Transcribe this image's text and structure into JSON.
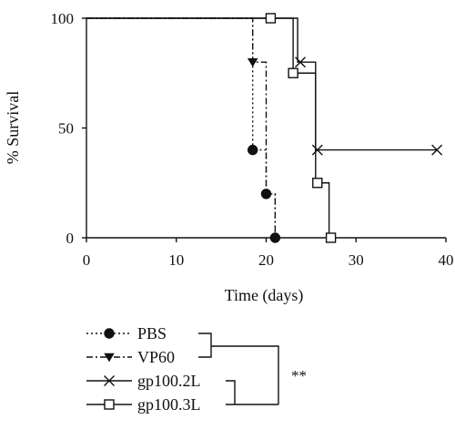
{
  "chart_data": {
    "type": "line",
    "subtype": "kaplan-meier-survival",
    "title": "",
    "xlabel": "Time (days)",
    "ylabel": "% Survival",
    "xlim": [
      0,
      40
    ],
    "ylim": [
      0,
      100
    ],
    "xticks": [
      0,
      10,
      20,
      30,
      40
    ],
    "yticks": [
      0,
      50,
      100
    ],
    "grid": false,
    "legend_position": "bottom",
    "significance_label": "**",
    "significance_groups": [
      [
        "PBS",
        "VP60"
      ],
      [
        "gp100.2L",
        "gp100.3L"
      ]
    ],
    "series": [
      {
        "name": "PBS",
        "line_style": "dotted",
        "marker": "circle-filled",
        "steps": [
          [
            0,
            100
          ],
          [
            18.5,
            40
          ],
          [
            20,
            20
          ],
          [
            21,
            0
          ]
        ],
        "markers": [
          [
            18.5,
            40
          ],
          [
            20,
            20
          ],
          [
            21,
            0
          ]
        ]
      },
      {
        "name": "VP60",
        "line_style": "dash-dot",
        "marker": "triangle-down-filled",
        "steps": [
          [
            0,
            100
          ],
          [
            18.5,
            80
          ],
          [
            20,
            20
          ],
          [
            21,
            0
          ]
        ],
        "markers": [
          [
            18.5,
            80
          ]
        ]
      },
      {
        "name": "gp100.2L",
        "line_style": "solid",
        "marker": "x",
        "steps": [
          [
            0,
            100
          ],
          [
            23.5,
            80
          ],
          [
            25.5,
            40
          ],
          [
            39,
            40
          ]
        ],
        "markers": [
          [
            23.8,
            80
          ],
          [
            25.7,
            40
          ],
          [
            39,
            40
          ]
        ]
      },
      {
        "name": "gp100.3L",
        "line_style": "solid",
        "marker": "square-open",
        "steps": [
          [
            0,
            100
          ],
          [
            23,
            75
          ],
          [
            25.5,
            25
          ],
          [
            27,
            0
          ]
        ],
        "markers": [
          [
            20.5,
            100
          ],
          [
            23,
            75
          ],
          [
            25.7,
            25
          ],
          [
            27.2,
            0
          ]
        ]
      }
    ]
  }
}
